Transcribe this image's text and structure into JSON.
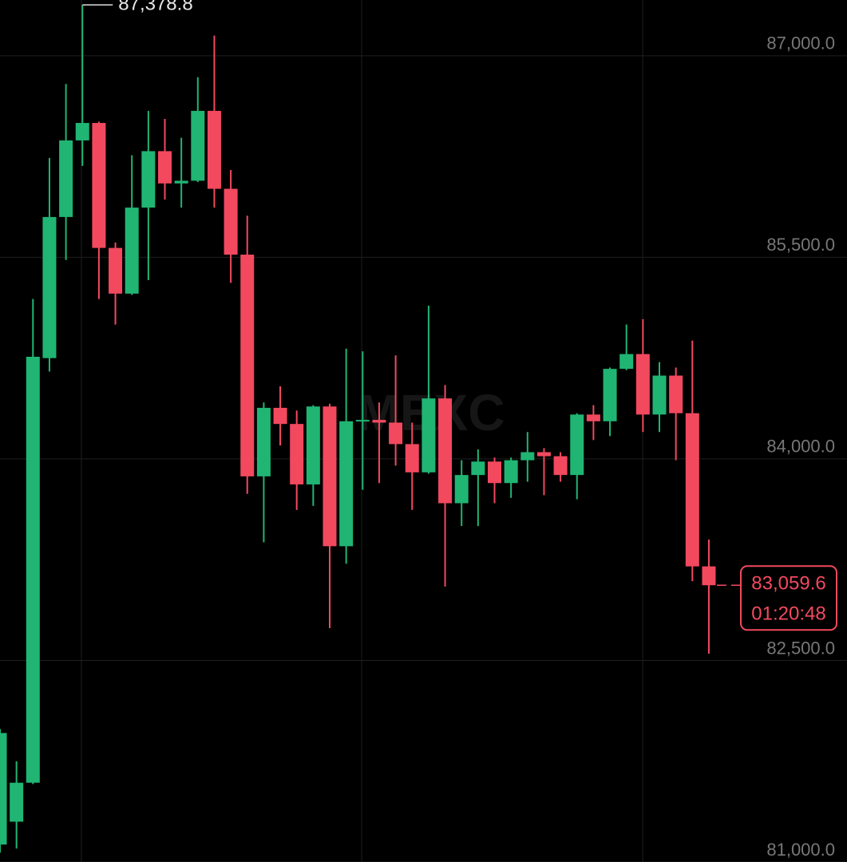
{
  "chart_data": {
    "type": "candlestick",
    "watermark": "MEXC",
    "up_color": "#20b573",
    "down_color": "#f2495f",
    "ylim": [
      81000,
      87415
    ],
    "yticks": [
      {
        "value": 81000,
        "label": "81,000.0"
      },
      {
        "value": 82500,
        "label": "82,500.0"
      },
      {
        "value": 84000,
        "label": "84,000.0"
      },
      {
        "value": 85500,
        "label": "85,500.0"
      },
      {
        "value": 87000,
        "label": "87,000.0"
      }
    ],
    "grid": true,
    "series": {
      "open": [
        81130,
        81300,
        81590,
        84750,
        85800,
        86370,
        86500,
        85570,
        85230,
        85870,
        86290,
        86050,
        86070,
        86590,
        86010,
        85520,
        83870,
        84380,
        84260,
        83810,
        84390,
        83350,
        84280,
        84290,
        84270,
        84110,
        83900,
        84450,
        83670,
        83880,
        83980,
        83820,
        83990,
        84050,
        84020,
        83880,
        84330,
        84280,
        84670,
        84780,
        84330,
        84620,
        84340,
        83200
      ],
      "high": [
        81990,
        81750,
        85190,
        86240,
        86790,
        87378.8,
        86510,
        85610,
        86260,
        86590,
        86530,
        86390,
        86840,
        87150,
        86150,
        85810,
        84420,
        84540,
        84360,
        84400,
        84410,
        84820,
        84800,
        84420,
        84770,
        84270,
        85140,
        84550,
        83990,
        84070,
        84010,
        84010,
        84200,
        84080,
        84050,
        84340,
        84400,
        84680,
        85000,
        85040,
        84720,
        84680,
        84880,
        83400
      ],
      "low": [
        81070,
        81100,
        81580,
        84650,
        85480,
        86180,
        85190,
        85000,
        85220,
        85330,
        85930,
        85870,
        86060,
        85870,
        85310,
        83740,
        83380,
        84100,
        83620,
        83650,
        82740,
        83220,
        83770,
        83820,
        83950,
        83620,
        83890,
        83050,
        83500,
        83500,
        83670,
        83710,
        83830,
        83730,
        83830,
        83700,
        84140,
        84170,
        84660,
        84200,
        84200,
        83990,
        83090,
        82550
      ],
      "close": [
        81960,
        81590,
        84760,
        85800,
        86370,
        86500,
        85570,
        85230,
        85870,
        86290,
        86050,
        86070,
        86590,
        86010,
        85520,
        83870,
        84380,
        84260,
        83810,
        84390,
        83350,
        84280,
        84290,
        84270,
        84110,
        83900,
        84450,
        83670,
        83880,
        83980,
        83820,
        83990,
        84050,
        84020,
        83880,
        84330,
        84280,
        84670,
        84780,
        84330,
        84620,
        84340,
        83200,
        83059.6
      ]
    },
    "max_label": {
      "value": 87378.8,
      "label": "87,378.8"
    },
    "last_price": {
      "value": 83059.6,
      "label": "83,059.6"
    },
    "countdown": "01:20:48"
  }
}
